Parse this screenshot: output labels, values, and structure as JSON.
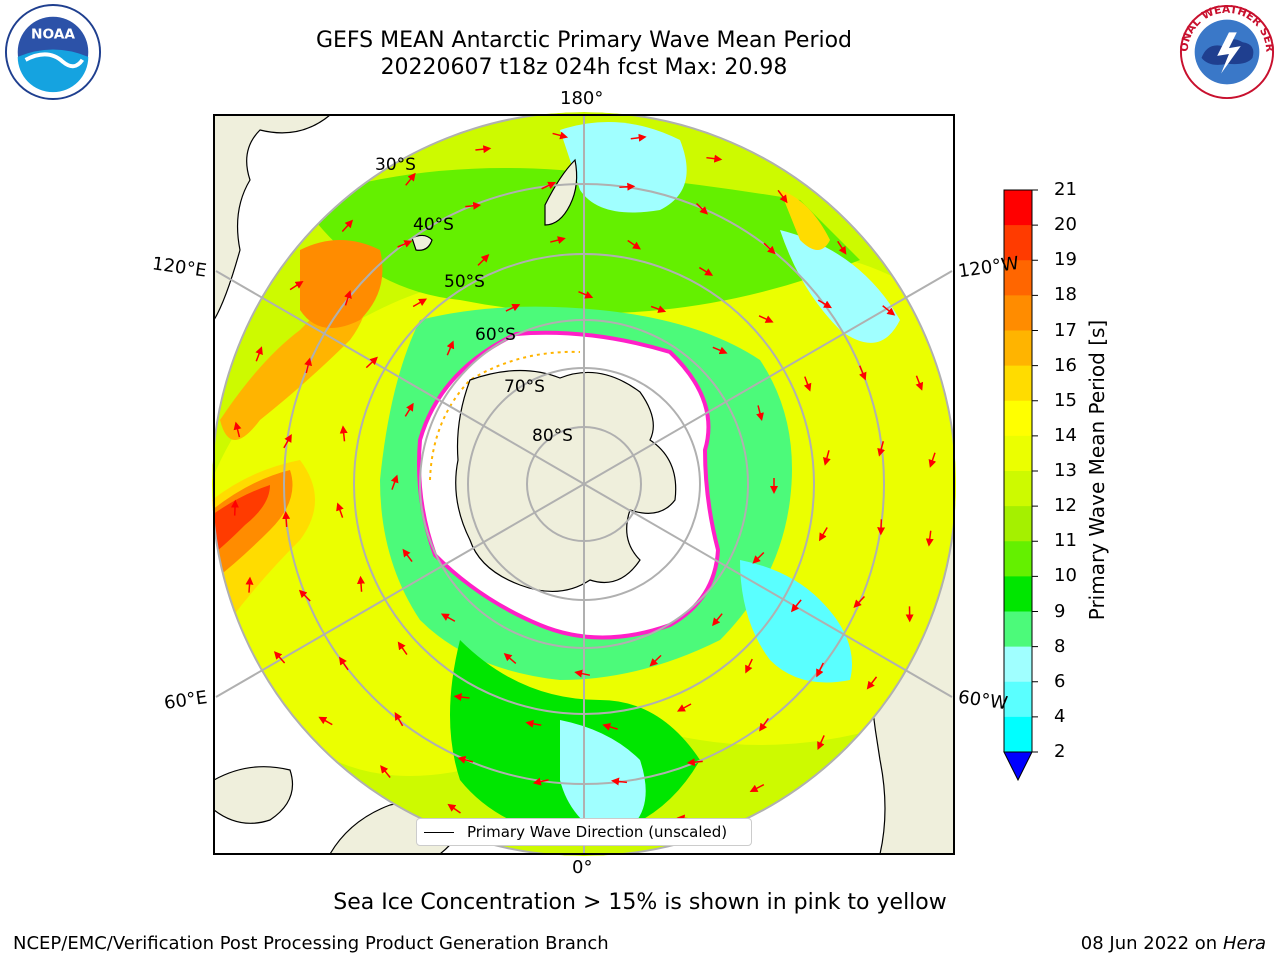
{
  "title": {
    "line1": "GEFS MEAN Antarctic Primary Wave Mean Period",
    "line2": "20220607 t18z 024h fcst   Max: 20.98"
  },
  "map": {
    "longitude_labels": [
      "180°",
      "0°",
      "120°E",
      "60°E",
      "120°W",
      "60°W"
    ],
    "latitude_labels": [
      "30°S",
      "40°S",
      "50°S",
      "60°S",
      "70°S",
      "80°S"
    ],
    "legend_text": "Primary Wave Direction (unscaled)"
  },
  "colorbar": {
    "label": "Primary Wave Mean Period [s]",
    "ticks": [
      "21",
      "20",
      "19",
      "18",
      "17",
      "16",
      "15",
      "14",
      "13",
      "12",
      "11",
      "10",
      "9",
      "8",
      "6",
      "4",
      "2"
    ],
    "colors": [
      "#ff0000",
      "#ff3b00",
      "#ff6600",
      "#ff8c00",
      "#ffb400",
      "#ffdc00",
      "#ffff00",
      "#ebff00",
      "#cdfa00",
      "#a5f000",
      "#64f000",
      "#00e600",
      "#4cfa7a",
      "#a0ffff",
      "#5affff",
      "#00ffff",
      "#00d2ff",
      "#0080ff",
      "#0000ff"
    ]
  },
  "footer": {
    "subtitle": "Sea Ice Concentration > 15% is shown in pink to yellow",
    "credit": "NCEP/EMC/Verification Post Processing Product Generation Branch",
    "date": "08 Jun 2022 on",
    "host": "Hera"
  },
  "logos": {
    "left": "noaa-logo",
    "right": "national-weather-service-logo",
    "right_text": "NATIONAL WEATHER SERVICE"
  }
}
